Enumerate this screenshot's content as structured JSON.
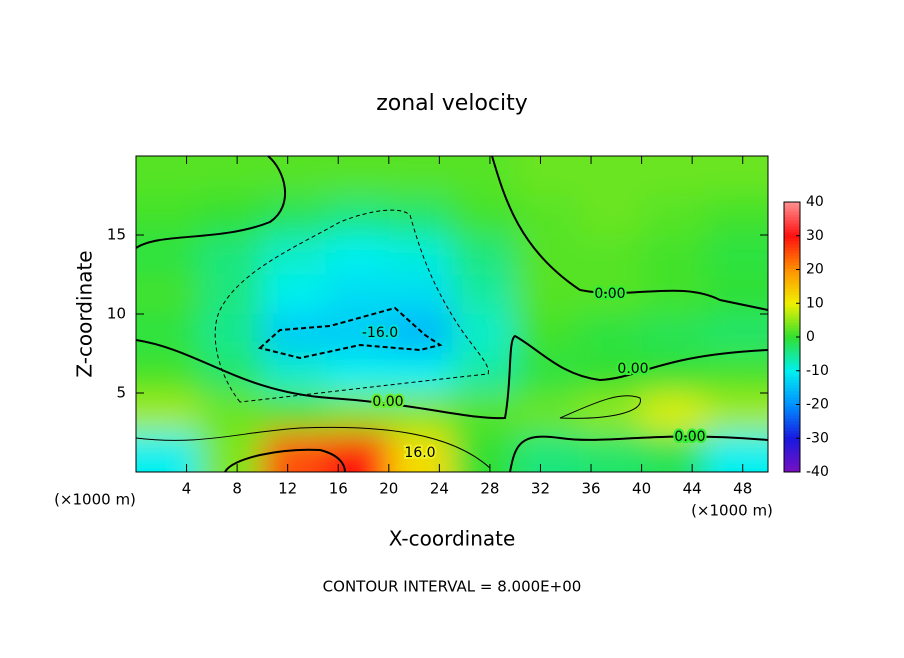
{
  "chart_data": {
    "type": "contour",
    "title": "zonal velocity",
    "xlabel": "X-coordinate",
    "ylabel": "Z-coordinate",
    "x_unit": "(×1000 m)",
    "footer": "CONTOUR INTERVAL = 8.000E+00",
    "xlim": [
      0,
      50
    ],
    "ylim": [
      0,
      20
    ],
    "xticks": [
      4,
      8,
      12,
      16,
      20,
      24,
      28,
      32,
      36,
      40,
      44,
      48
    ],
    "yticks": [
      5,
      10,
      15
    ],
    "x": [
      2.5,
      7.5,
      12.5,
      17.5,
      22.5,
      27.5,
      32.5,
      37.5,
      42.5,
      47.5
    ],
    "y": [
      18.75,
      16.25,
      13.75,
      11.25,
      8.75,
      6.25,
      3.75,
      1.25
    ],
    "z": [
      [
        2,
        2,
        2,
        2,
        2,
        2,
        3,
        3,
        3,
        3
      ],
      [
        1,
        0,
        -2,
        -4,
        -3,
        1,
        2,
        3,
        2,
        1
      ],
      [
        -1,
        -4,
        -8,
        -10,
        -9,
        -4,
        2,
        2,
        1,
        -1
      ],
      [
        1,
        -4,
        -10,
        -12,
        -12,
        -6,
        2,
        2,
        1,
        0
      ],
      [
        -1,
        -5,
        -14,
        -14,
        -16,
        -8,
        1,
        -1,
        -2,
        -3
      ],
      [
        1,
        -3,
        -8,
        -10,
        -10,
        -6,
        -1,
        0,
        0,
        1
      ],
      [
        6,
        3,
        2,
        4,
        4,
        2,
        3,
        5,
        9,
        6
      ],
      [
        -10,
        4,
        25,
        30,
        12,
        0,
        -4,
        -3,
        -2,
        -10
      ]
    ],
    "colorbar_ticks": [
      -40,
      -30,
      -20,
      -10,
      0,
      10,
      20,
      30,
      40
    ],
    "colorbar_colors": [
      "#7a10c0",
      "#1818e0",
      "#0090ff",
      "#00f0f0",
      "#30e030",
      "#f0f000",
      "#ff9000",
      "#ff1010",
      "#ff9090"
    ],
    "contour_labels": [
      "0.00",
      "0.00",
      "0.00",
      "0.00",
      "-16.0",
      "16.0"
    ]
  }
}
